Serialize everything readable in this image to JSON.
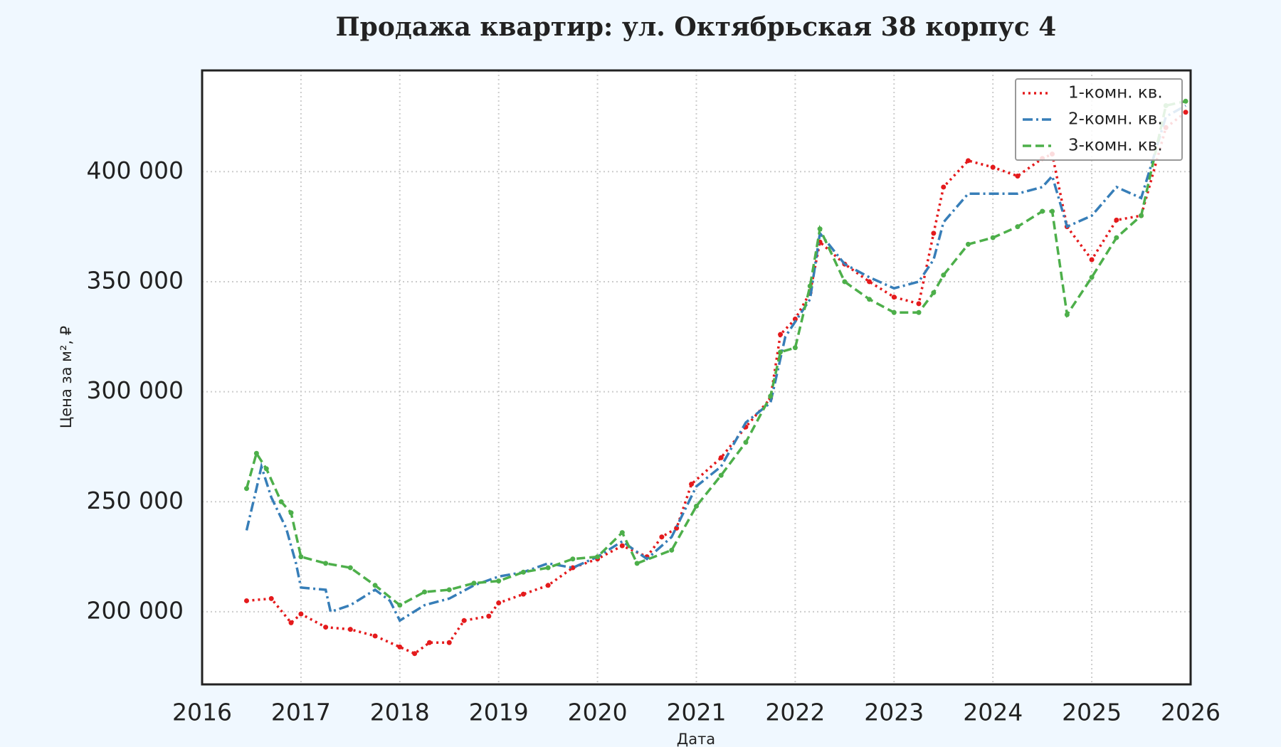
{
  "chart_data": {
    "type": "line",
    "title": "Продажа квартир: ул. Октябрьская 38 корпус 4",
    "xlabel": "Дата",
    "ylabel": "Цена за м², ₽",
    "xlim": [
      2016,
      2026
    ],
    "xticks": [
      2016,
      2017,
      2018,
      2019,
      2020,
      2021,
      2022,
      2023,
      2024,
      2025,
      2026
    ],
    "ylim": [
      167000,
      446000
    ],
    "yticks": [
      {
        "value": 200000,
        "label": "200 000"
      },
      {
        "value": 250000,
        "label": "250 000"
      },
      {
        "value": 300000,
        "label": "300 000"
      },
      {
        "value": 350000,
        "label": "350 000"
      },
      {
        "value": 400000,
        "label": "400 000"
      }
    ],
    "grid": true,
    "legend": "upper right",
    "series": [
      {
        "name": "1-комн. кв.",
        "color": "#e41a1c",
        "style": "dotted",
        "x": [
          2016.45,
          2016.7,
          2016.9,
          2017.0,
          2017.25,
          2017.5,
          2017.75,
          2018.0,
          2018.15,
          2018.3,
          2018.5,
          2018.65,
          2018.9,
          2019.0,
          2019.25,
          2019.5,
          2019.75,
          2020.0,
          2020.25,
          2020.5,
          2020.65,
          2020.8,
          2020.95,
          2021.25,
          2021.5,
          2021.75,
          2021.85,
          2022.0,
          2022.15,
          2022.25,
          2022.5,
          2022.75,
          2023.0,
          2023.25,
          2023.4,
          2023.5,
          2023.75,
          2024.0,
          2024.25,
          2024.5,
          2024.6,
          2024.75,
          2025.0,
          2025.25,
          2025.5,
          2025.75,
          2025.95
        ],
        "values": [
          205000,
          206000,
          195000,
          199000,
          193000,
          192000,
          189000,
          184000,
          181000,
          186000,
          186000,
          196000,
          198000,
          204000,
          208000,
          212000,
          220000,
          224000,
          230000,
          225000,
          234000,
          238000,
          258000,
          270000,
          284000,
          297000,
          326000,
          333000,
          345000,
          368000,
          358000,
          350000,
          343000,
          340000,
          372000,
          393000,
          405000,
          402000,
          398000,
          406000,
          408000,
          375000,
          360000,
          378000,
          380000,
          420000,
          427000
        ]
      },
      {
        "name": "2-комн. кв.",
        "color": "#377eb8",
        "style": "dashdot",
        "x": [
          2016.45,
          2016.55,
          2016.6,
          2016.7,
          2016.85,
          2016.95,
          2017.0,
          2017.25,
          2017.3,
          2017.5,
          2017.75,
          2017.9,
          2018.0,
          2018.25,
          2018.5,
          2018.75,
          2019.0,
          2019.25,
          2019.5,
          2019.75,
          2020.0,
          2020.25,
          2020.5,
          2020.75,
          2021.0,
          2021.25,
          2021.5,
          2021.75,
          2021.9,
          2022.15,
          2022.25,
          2022.5,
          2022.75,
          2023.0,
          2023.25,
          2023.4,
          2023.5,
          2023.75,
          2024.0,
          2024.25,
          2024.5,
          2024.6,
          2024.75,
          2025.0,
          2025.25,
          2025.5,
          2025.75,
          2025.95
        ],
        "values": [
          237000,
          256000,
          266000,
          252000,
          238000,
          222000,
          211000,
          210000,
          200000,
          203000,
          210000,
          205000,
          196000,
          203000,
          206000,
          212000,
          216000,
          218000,
          222000,
          220000,
          225000,
          232000,
          224000,
          234000,
          257000,
          266000,
          286000,
          295000,
          325000,
          342000,
          372000,
          358000,
          352000,
          347000,
          350000,
          360000,
          377000,
          390000,
          390000,
          390000,
          393000,
          398000,
          375000,
          380000,
          393000,
          388000,
          425000,
          430000
        ]
      },
      {
        "name": "3-комн. кв.",
        "color": "#4daf4a",
        "style": "dashed",
        "x": [
          2016.45,
          2016.55,
          2016.65,
          2016.8,
          2016.9,
          2017.0,
          2017.25,
          2017.5,
          2017.75,
          2018.0,
          2018.25,
          2018.5,
          2018.75,
          2019.0,
          2019.25,
          2019.5,
          2019.75,
          2020.0,
          2020.25,
          2020.4,
          2020.75,
          2021.0,
          2021.25,
          2021.5,
          2021.75,
          2021.85,
          2022.0,
          2022.15,
          2022.25,
          2022.5,
          2022.75,
          2023.0,
          2023.25,
          2023.4,
          2023.5,
          2023.75,
          2024.0,
          2024.25,
          2024.5,
          2024.6,
          2024.75,
          2025.0,
          2025.25,
          2025.5,
          2025.75,
          2025.95
        ],
        "values": [
          256000,
          272000,
          265000,
          250000,
          245000,
          225000,
          222000,
          220000,
          212000,
          203000,
          209000,
          210000,
          213000,
          214000,
          218000,
          220000,
          224000,
          225000,
          236000,
          222000,
          228000,
          248000,
          262000,
          277000,
          298000,
          318000,
          320000,
          348000,
          374000,
          350000,
          342000,
          336000,
          336000,
          345000,
          353000,
          367000,
          370000,
          375000,
          382000,
          382000,
          335000,
          352000,
          370000,
          380000,
          430000,
          432000
        ]
      }
    ]
  }
}
